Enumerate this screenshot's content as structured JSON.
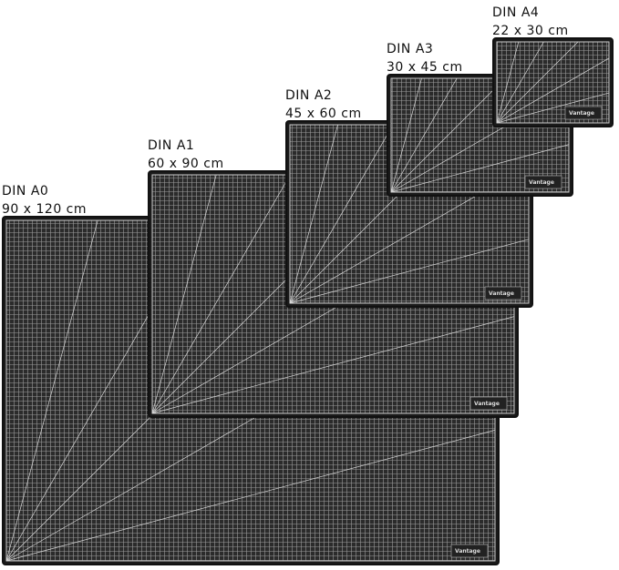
{
  "brand": "Vantage",
  "mats": [
    {
      "name": "DIN A0",
      "size": "90 x 120 cm"
    },
    {
      "name": "DIN A1",
      "size": "60 x 90 cm"
    },
    {
      "name": "DIN A2",
      "size": "45 x 60 cm"
    },
    {
      "name": "DIN A3",
      "size": "30 x 45 cm"
    },
    {
      "name": "DIN A4",
      "size": "22 x 30 cm"
    }
  ]
}
